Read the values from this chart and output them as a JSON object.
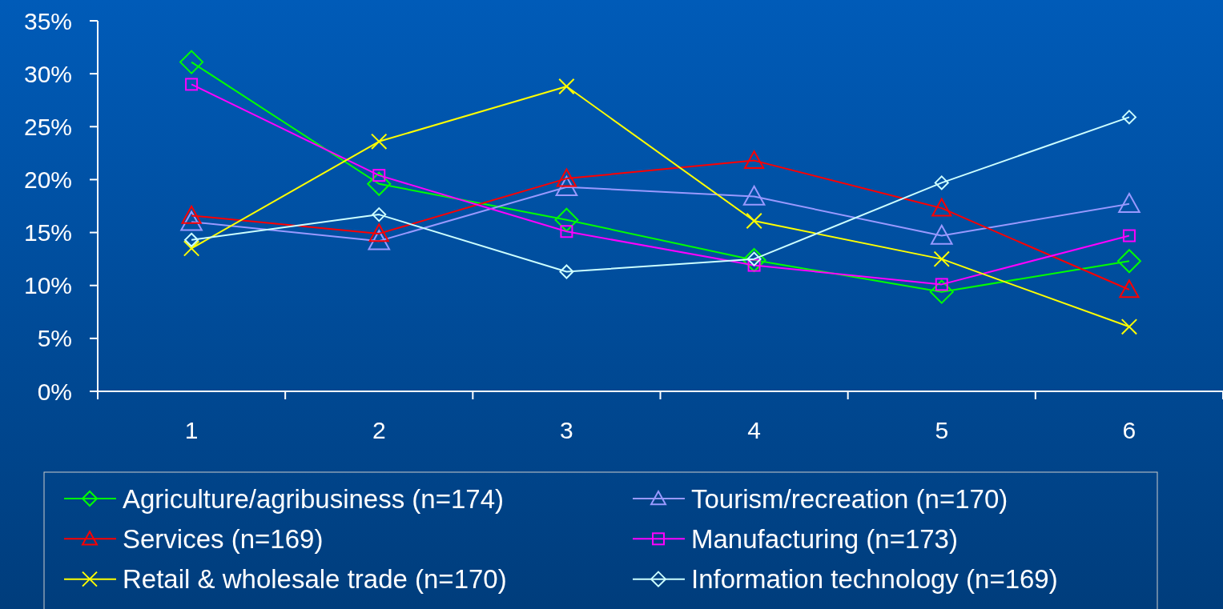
{
  "chart_data": {
    "type": "line",
    "categories": [
      "1",
      "2",
      "3",
      "4",
      "5",
      "6"
    ],
    "series": [
      {
        "name": "Agriculture/agribusiness (n=174)",
        "color": "#00ff00",
        "marker": "diamond",
        "values": [
          31.1,
          19.6,
          16.2,
          12.4,
          9.4,
          12.3
        ]
      },
      {
        "name": "Tourism/recreation (n=170)",
        "color": "#9999ff",
        "marker": "triangle",
        "values": [
          16.0,
          14.2,
          19.3,
          18.4,
          14.7,
          17.7
        ]
      },
      {
        "name": "Services (n=169)",
        "color": "#ff0000",
        "marker": "triangle",
        "values": [
          16.6,
          14.9,
          20.1,
          21.8,
          17.3,
          9.6
        ]
      },
      {
        "name": "Manufacturing (n=173)",
        "color": "#ff00ff",
        "marker": "square",
        "values": [
          29.0,
          20.4,
          15.1,
          11.9,
          10.1,
          14.7
        ]
      },
      {
        "name": "Retail & wholesale trade (n=170)",
        "color": "#ffff00",
        "marker": "cross",
        "values": [
          13.5,
          23.6,
          28.8,
          16.1,
          12.5,
          6.1
        ]
      },
      {
        "name": "Information technology (n=169)",
        "color": "#ccffff",
        "marker": "diamond",
        "values": [
          14.3,
          16.7,
          11.3,
          12.5,
          19.7,
          25.9
        ]
      }
    ],
    "ylim": [
      0,
      35
    ],
    "yticks": [
      {
        "value": 0,
        "label": "0%"
      },
      {
        "value": 5,
        "label": "5%"
      },
      {
        "value": 10,
        "label": "10%"
      },
      {
        "value": 15,
        "label": "15%"
      },
      {
        "value": 20,
        "label": "20%"
      },
      {
        "value": 25,
        "label": "25%"
      },
      {
        "value": 30,
        "label": "30%"
      },
      {
        "value": 35,
        "label": "35%"
      }
    ],
    "grid": false,
    "legend": "bottom",
    "line_style": "solid"
  }
}
